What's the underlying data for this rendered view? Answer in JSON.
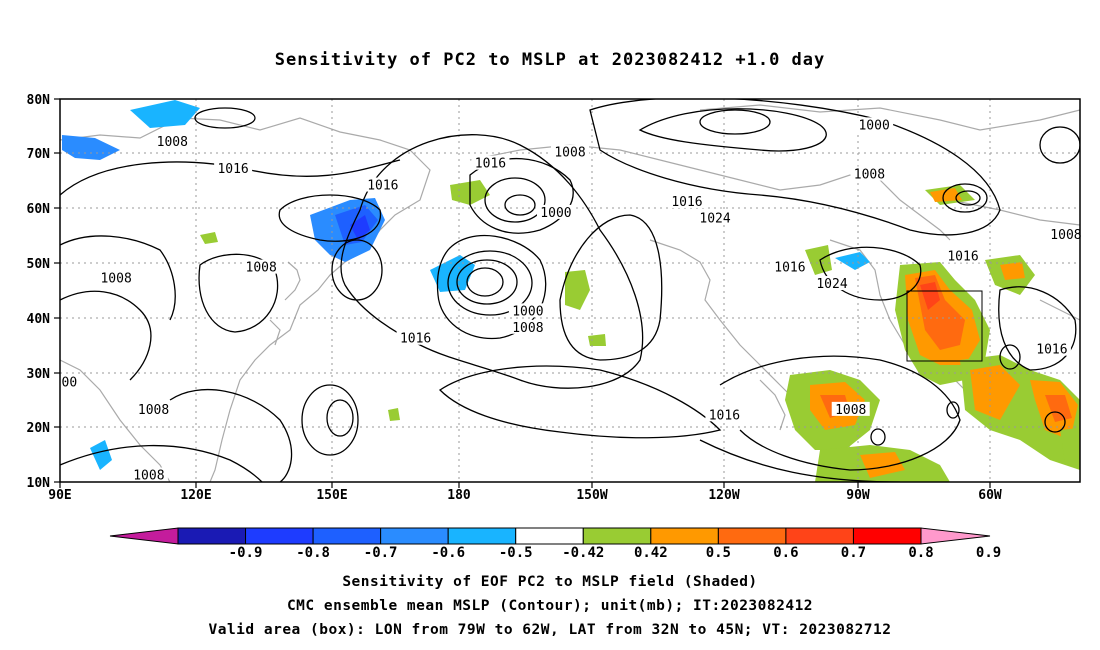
{
  "title": "Sensitivity of PC2 to MSLP at 2023082412 +1.0 day",
  "lat_labels": [
    "80N",
    "70N",
    "60N",
    "50N",
    "40N",
    "30N",
    "20N",
    "10N"
  ],
  "lon_labels": [
    "90E",
    "120E",
    "150E",
    "180",
    "150W",
    "120W",
    "90W",
    "60W"
  ],
  "contour_labels": [
    {
      "text": "1008",
      "lon": 114,
      "lat": 72
    },
    {
      "text": "1016",
      "lon": 127,
      "lat": 67
    },
    {
      "text": "1016",
      "lon": 159,
      "lat": 64
    },
    {
      "text": "1016",
      "lon": 182,
      "lat": 68
    },
    {
      "text": "1008",
      "lon": 199,
      "lat": 70
    },
    {
      "text": "1000",
      "lon": 196,
      "lat": 59
    },
    {
      "text": "1016",
      "lon": 224,
      "lat": 61
    },
    {
      "text": "1024",
      "lon": 230,
      "lat": 58
    },
    {
      "text": "1000",
      "lon": 264,
      "lat": 75
    },
    {
      "text": "1008",
      "lon": 263,
      "lat": 66
    },
    {
      "text": "1016",
      "lon": 283,
      "lat": 51
    },
    {
      "text": "1008",
      "lon": 305,
      "lat": 55
    },
    {
      "text": "1008",
      "lon": 133,
      "lat": 49
    },
    {
      "text": "1008",
      "lon": 102,
      "lat": 47
    },
    {
      "text": "1016",
      "lon": 166,
      "lat": 36
    },
    {
      "text": "1000",
      "lon": 190,
      "lat": 41
    },
    {
      "text": "1008",
      "lon": 190,
      "lat": 38
    },
    {
      "text": "1016",
      "lon": 246,
      "lat": 49
    },
    {
      "text": "1024",
      "lon": 255,
      "lat": 46
    },
    {
      "text": "1016",
      "lon": 302,
      "lat": 34
    },
    {
      "text": "1016",
      "lon": 232,
      "lat": 22
    },
    {
      "text": "1008",
      "lon": 259,
      "lat": 23
    },
    {
      "text": "1008",
      "lon": 110,
      "lat": 23
    },
    {
      "text": "1008",
      "lon": 109,
      "lat": 11
    },
    {
      "text": "00",
      "lon": 92,
      "lat": 28
    }
  ],
  "colorbar": {
    "labels": [
      "-0.9",
      "-0.8",
      "-0.7",
      "-0.6",
      "-0.5",
      "-0.42",
      "0.42",
      "0.5",
      "0.6",
      "0.7",
      "0.8",
      "0.9"
    ],
    "colors": [
      "#c41c9c",
      "#1a1ab4",
      "#1e3cff",
      "#1e60ff",
      "#2a8cff",
      "#19b4ff",
      "#ffffff",
      "#99cc33",
      "#ff9900",
      "#ff6a10",
      "#ff4418",
      "#ff0000",
      "#ff99cc"
    ]
  },
  "captions": [
    "Sensitivity of EOF PC2 to MSLP field (Shaded)",
    "CMC ensemble mean MSLP (Contour); unit(mb); IT:2023082412",
    "Valid area (box): LON from 79W to 62W, LAT from 32N to 45N; VT: 2023082712"
  ],
  "valid_box": {
    "lon_min": -79,
    "lon_max": -62,
    "lat_min": 32,
    "lat_max": 45
  }
}
